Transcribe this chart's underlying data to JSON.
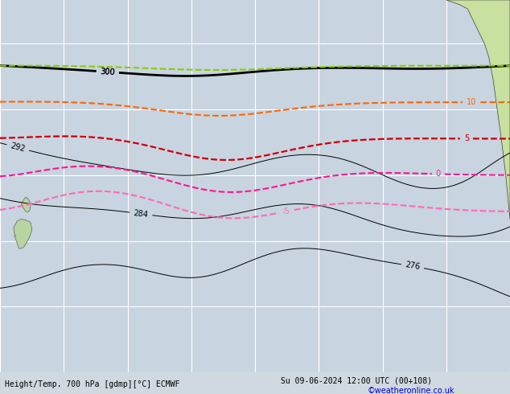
{
  "title_left": "Height/Temp. 700 hPa [gdmp][°C] ECMWF",
  "title_right": "Su 09-06-2024 12:00 UTC (00+108)",
  "credit": "©weatheronline.co.uk",
  "background_color": "#d0d8e8",
  "land_color": "#e8e8e8",
  "grid_color": "#ffffff",
  "map_extent": [
    -180,
    -60,
    -75,
    10
  ],
  "title_fontsize": 8,
  "credit_fontsize": 7
}
